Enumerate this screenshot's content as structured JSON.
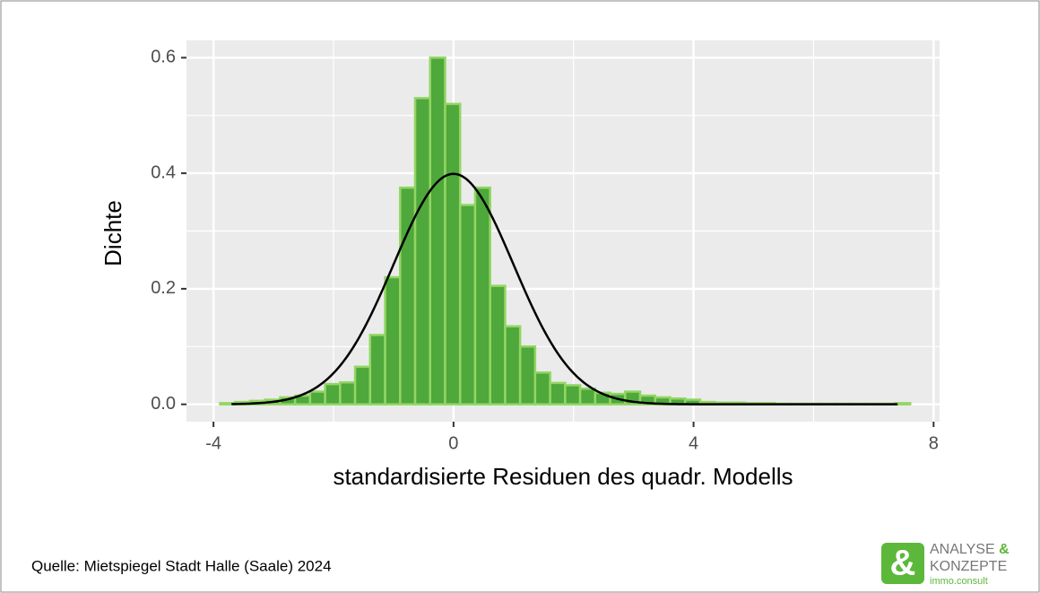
{
  "chart_data": {
    "type": "histogram",
    "xlabel": "standardisierte Residuen des quadr. Modells",
    "ylabel": "Dichte",
    "bins": [
      -3.89,
      -3.64,
      -3.39,
      -3.14,
      -2.89,
      -2.64,
      -2.39,
      -2.14,
      -1.89,
      -1.64,
      -1.39,
      -1.14,
      -0.89,
      -0.64,
      -0.39,
      -0.14,
      0.11,
      0.36,
      0.61,
      0.86,
      1.11,
      1.36,
      1.61,
      1.86,
      2.11,
      2.36,
      2.61,
      2.86,
      3.11,
      3.36,
      3.61,
      3.86,
      4.11,
      4.36,
      4.61,
      4.86,
      5.11,
      5.36,
      5.61,
      5.86,
      6.11,
      6.36,
      6.61,
      6.86,
      7.11,
      7.36,
      7.61
    ],
    "values": [
      0.002,
      0.004,
      0.006,
      0.008,
      0.012,
      0.015,
      0.022,
      0.035,
      0.038,
      0.065,
      0.12,
      0.22,
      0.375,
      0.53,
      0.6,
      0.52,
      0.345,
      0.375,
      0.205,
      0.135,
      0.1,
      0.055,
      0.037,
      0.033,
      0.027,
      0.02,
      0.018,
      0.022,
      0.015,
      0.012,
      0.01,
      0.008,
      0.004,
      0.003,
      0.003,
      0.002,
      0.002,
      0.001,
      0.001,
      0.001,
      0.001,
      0.001,
      0.001,
      0.001,
      0.001,
      0.002
    ],
    "color": "#4ea83c",
    "edgecolor": "#93d563",
    "curve": {
      "mean": 0,
      "sd": 1,
      "from": -3.7,
      "to": 7.4,
      "color": "#000000"
    },
    "xlim": [
      -4.45,
      8.1
    ],
    "ylim": [
      -0.03,
      0.63
    ],
    "xticks": [
      -4,
      0,
      4,
      8
    ],
    "xminor": [
      -2,
      2,
      6
    ],
    "yticks": [
      {
        "value": 0,
        "label": "0.0"
      },
      0.2,
      0.4,
      0.6
    ],
    "yminor": [
      0.1,
      0.3,
      0.5
    ],
    "grid": true
  },
  "footer": {
    "source": "Quelle: Mietspiegel Stadt Halle (Saale) 2024",
    "logo": {
      "symbol": "&",
      "line1": "ANALYSE",
      "amp": "&",
      "line2": "KONZEPTE",
      "line3": "immo.consult"
    }
  }
}
